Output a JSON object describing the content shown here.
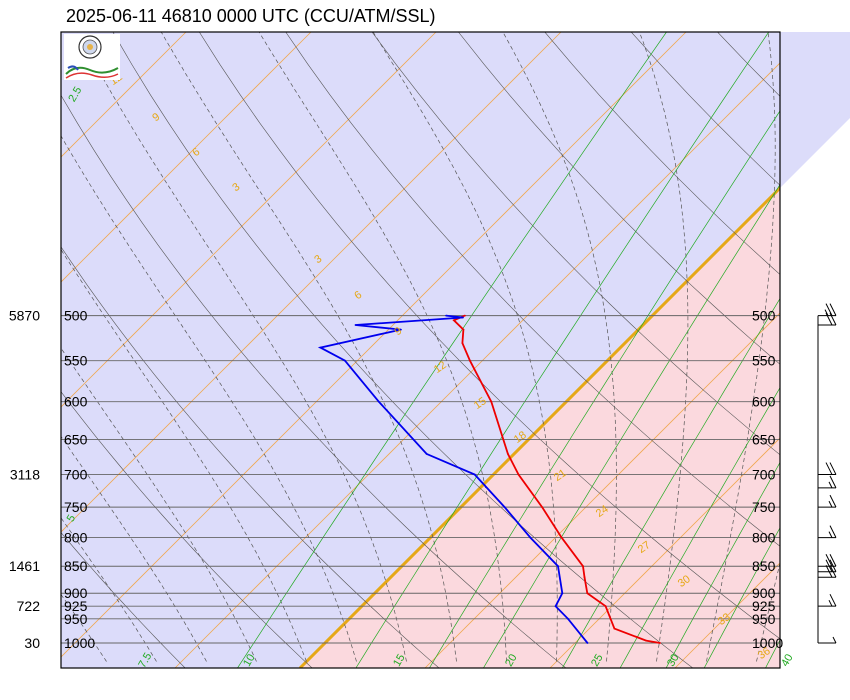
{
  "chart_data": {
    "type": "line",
    "title": "2025-06-11 46810 0000 UTC (CCU/ATM/SSL)",
    "pressure_levels": [
      500,
      550,
      600,
      650,
      700,
      750,
      800,
      850,
      900,
      925,
      950,
      1000
    ],
    "pressure_labels": [
      "500",
      "550",
      "600",
      "650",
      "700",
      "750",
      "800",
      "850",
      "900",
      "925",
      "950",
      "1000"
    ],
    "height_labels": [
      {
        "p": 500,
        "label": "5870"
      },
      {
        "p": 700,
        "label": "3118"
      },
      {
        "p": 850,
        "label": "1461"
      },
      {
        "p": 925,
        "label": "722"
      },
      {
        "p": 1000,
        "label": "30"
      }
    ],
    "mixing_ratio_labels": [
      "7.5",
      "10",
      "15",
      "20",
      "25",
      "30",
      "40",
      "2.5",
      "5"
    ],
    "dry_adiabat_labels": [
      "12",
      "9",
      "6",
      "3",
      "3",
      "6",
      "9",
      "12",
      "15",
      "18",
      "21",
      "24",
      "27",
      "30",
      "33",
      "36"
    ],
    "cape_color": "#fbd9de",
    "cin_color": "#dcdcfa",
    "series": [
      {
        "color": "#ee0000",
        "points": [
          {
            "p": 1000,
            "t": 26.8
          },
          {
            "p": 995,
            "t": 25.5
          },
          {
            "p": 970,
            "t": 22.0
          },
          {
            "p": 925,
            "t": 19.5
          },
          {
            "p": 900,
            "t": 17.0
          },
          {
            "p": 870,
            "t": 15.5
          },
          {
            "p": 850,
            "t": 14.5
          },
          {
            "p": 800,
            "t": 10.5
          },
          {
            "p": 750,
            "t": 6.5
          },
          {
            "p": 700,
            "t": 2.0
          },
          {
            "p": 670,
            "t": -0.5
          },
          {
            "p": 600,
            "t": -6.0
          },
          {
            "p": 550,
            "t": -11.0
          },
          {
            "p": 530,
            "t": -13.0
          },
          {
            "p": 515,
            "t": -14.0
          },
          {
            "p": 505,
            "t": -15.5
          },
          {
            "p": 500,
            "t": -15.0
          }
        ]
      },
      {
        "color": "#0000ee",
        "points": [
          {
            "p": 1000,
            "t": 21.0
          },
          {
            "p": 950,
            "t": 17.5
          },
          {
            "p": 925,
            "t": 15.5
          },
          {
            "p": 900,
            "t": 15.0
          },
          {
            "p": 850,
            "t": 12.5
          },
          {
            "p": 800,
            "t": 8.0
          },
          {
            "p": 750,
            "t": 3.5
          },
          {
            "p": 700,
            "t": -1.5
          },
          {
            "p": 670,
            "t": -7.0
          },
          {
            "p": 600,
            "t": -15.0
          },
          {
            "p": 550,
            "t": -21.0
          },
          {
            "p": 535,
            "t": -24.0
          },
          {
            "p": 515,
            "t": -19.0
          },
          {
            "p": 510,
            "t": -23.0
          },
          {
            "p": 502,
            "t": -15.0
          },
          {
            "p": 500,
            "t": -16.5
          }
        ]
      }
    ],
    "wind_barbs": [
      {
        "p": 500,
        "speed_kt": 25
      },
      {
        "p": 510,
        "speed_kt": 20
      },
      {
        "p": 700,
        "speed_kt": 20
      },
      {
        "p": 720,
        "speed_kt": 15
      },
      {
        "p": 750,
        "speed_kt": 15
      },
      {
        "p": 800,
        "speed_kt": 15
      },
      {
        "p": 850,
        "speed_kt": 20
      },
      {
        "p": 860,
        "speed_kt": 20
      },
      {
        "p": 870,
        "speed_kt": 20
      },
      {
        "p": 925,
        "speed_kt": 15
      },
      {
        "p": 1000,
        "speed_kt": 5
      }
    ]
  }
}
